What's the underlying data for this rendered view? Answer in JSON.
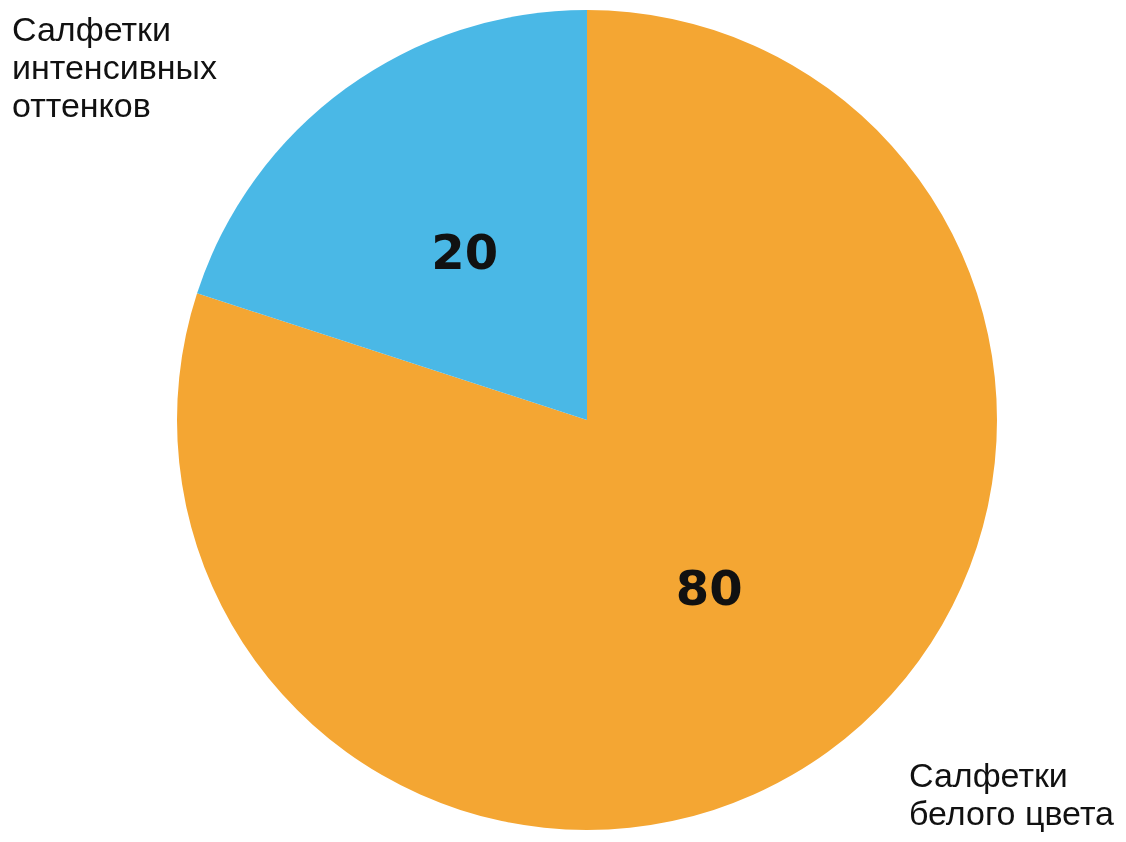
{
  "chart_data": {
    "type": "pie",
    "categories": [
      "Салфетки белого цвета",
      "Салфетки интенсивных оттенков"
    ],
    "values": [
      80,
      20
    ],
    "colors": [
      "#f4a633",
      "#4ab8e6"
    ],
    "data_labels": true,
    "legend": false
  }
}
